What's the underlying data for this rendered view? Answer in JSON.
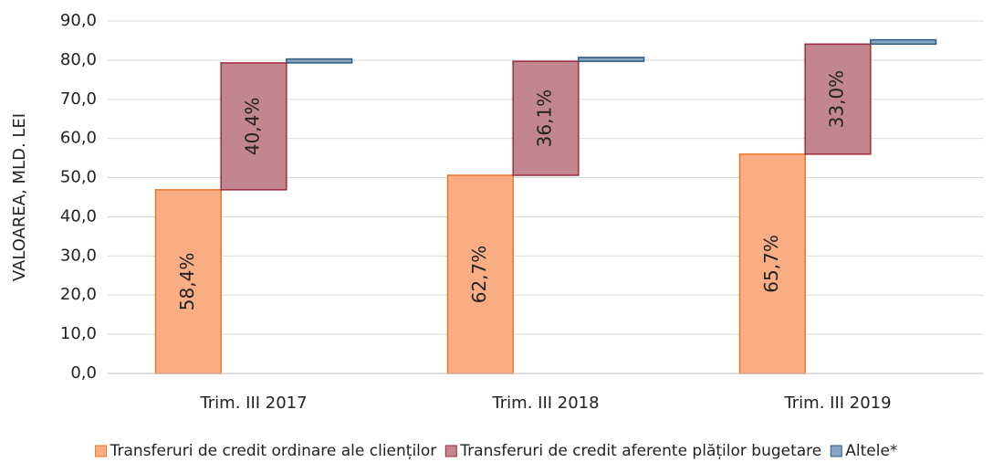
{
  "chart_data": {
    "type": "offset_stacked_bar",
    "y_axis_label": "VALOAREA, MLD. LEI",
    "categories": [
      "Trim. III 2017",
      "Trim. III 2018",
      "Trim. III 2019"
    ],
    "series": [
      {
        "name": "Transferuri de credit ordinare ale clienților",
        "color": "#f9ad85",
        "stroke": "#e8782a",
        "values": [
          46.9,
          50.6,
          56.0
        ],
        "labels": [
          "58,4%",
          "62,7%",
          "65,7%"
        ]
      },
      {
        "name": "Transferuri de credit aferente plăților bugetare",
        "color": "#c1868e",
        "stroke": "#a12a3c",
        "values": [
          32.4,
          29.1,
          28.1
        ],
        "labels": [
          "40,4%",
          "36,1%",
          "33,0%"
        ]
      },
      {
        "name": "Altele*",
        "color": "#86a6c2",
        "stroke": "#2f5b80",
        "values": [
          1.0,
          1.0,
          1.1
        ]
      }
    ],
    "ylim": [
      0,
      90
    ],
    "yticks": [
      {
        "value": 0,
        "label": "0,0"
      },
      {
        "value": 10,
        "label": "10,0"
      },
      {
        "value": 20,
        "label": "20,0"
      },
      {
        "value": 30,
        "label": "30,0"
      },
      {
        "value": 40,
        "label": "40,0"
      },
      {
        "value": 50,
        "label": "50,0"
      },
      {
        "value": 60,
        "label": "60,0"
      },
      {
        "value": 70,
        "label": "70,0"
      },
      {
        "value": 80,
        "label": "80,0"
      },
      {
        "value": 90,
        "label": "90,0"
      }
    ],
    "grid": true,
    "legend": "bottom"
  }
}
